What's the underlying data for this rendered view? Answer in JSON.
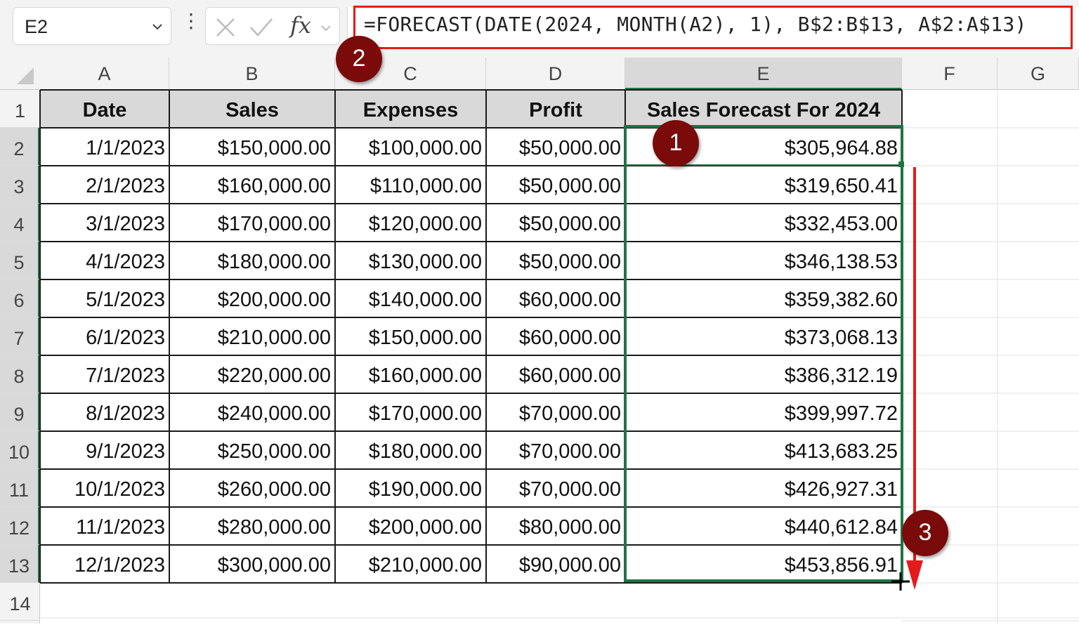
{
  "name_box": {
    "value": "E2"
  },
  "formula_bar": {
    "fx_label": "fx",
    "formula": "=FORECAST(DATE(2024, MONTH(A2), 1), B$2:B$13, A$2:A$13)"
  },
  "columns": [
    "A",
    "B",
    "C",
    "D",
    "E",
    "F",
    "G"
  ],
  "rows": [
    "1",
    "2",
    "3",
    "4",
    "5",
    "6",
    "7",
    "8",
    "9",
    "10",
    "11",
    "12",
    "13",
    "14"
  ],
  "table": {
    "headers": [
      "Date",
      "Sales",
      "Expenses",
      "Profit",
      "Sales Forecast For 2024"
    ],
    "data": [
      [
        "1/1/2023",
        "$150,000.00",
        "$100,000.00",
        "$50,000.00",
        "$305,964.88"
      ],
      [
        "2/1/2023",
        "$160,000.00",
        "$110,000.00",
        "$50,000.00",
        "$319,650.41"
      ],
      [
        "3/1/2023",
        "$170,000.00",
        "$120,000.00",
        "$50,000.00",
        "$332,453.00"
      ],
      [
        "4/1/2023",
        "$180,000.00",
        "$130,000.00",
        "$50,000.00",
        "$346,138.53"
      ],
      [
        "5/1/2023",
        "$200,000.00",
        "$140,000.00",
        "$60,000.00",
        "$359,382.60"
      ],
      [
        "6/1/2023",
        "$210,000.00",
        "$150,000.00",
        "$60,000.00",
        "$373,068.13"
      ],
      [
        "7/1/2023",
        "$220,000.00",
        "$160,000.00",
        "$60,000.00",
        "$386,312.19"
      ],
      [
        "8/1/2023",
        "$240,000.00",
        "$170,000.00",
        "$70,000.00",
        "$399,997.72"
      ],
      [
        "9/1/2023",
        "$250,000.00",
        "$180,000.00",
        "$70,000.00",
        "$413,683.25"
      ],
      [
        "10/1/2023",
        "$260,000.00",
        "$190,000.00",
        "$70,000.00",
        "$426,927.31"
      ],
      [
        "11/1/2023",
        "$280,000.00",
        "$200,000.00",
        "$80,000.00",
        "$440,612.84"
      ],
      [
        "12/1/2023",
        "$300,000.00",
        "$210,000.00",
        "$90,000.00",
        "$453,856.91"
      ]
    ]
  },
  "annotations": {
    "step1": "1",
    "step2": "2",
    "step3": "3"
  },
  "colors": {
    "highlight_red": "#e31b1b",
    "selection_green": "#217346",
    "badge_fill": "#7b0a0a",
    "header_fill": "#d9d9d9"
  },
  "icons": [
    "chevron-down-icon",
    "more-options-icon",
    "cancel-x-icon",
    "enter-check-icon",
    "fx-icon",
    "fill-handle-cursor-icon",
    "drag-down-arrow-icon"
  ]
}
